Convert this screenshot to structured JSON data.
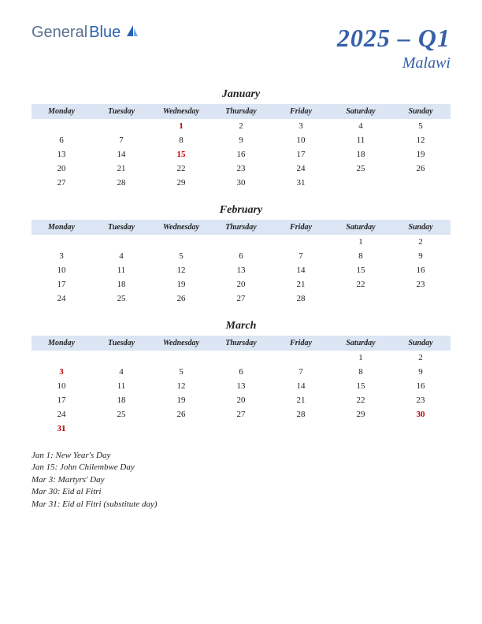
{
  "logo": {
    "general": "General",
    "blue": "Blue"
  },
  "title": {
    "main": "2025 – Q1",
    "sub": "Malawi"
  },
  "daynames": [
    "Monday",
    "Tuesday",
    "Wednesday",
    "Thursday",
    "Friday",
    "Saturday",
    "Sunday"
  ],
  "months": [
    {
      "name": "January",
      "weeks": [
        [
          {
            "d": ""
          },
          {
            "d": ""
          },
          {
            "d": "1",
            "h": true
          },
          {
            "d": "2"
          },
          {
            "d": "3"
          },
          {
            "d": "4"
          },
          {
            "d": "5"
          }
        ],
        [
          {
            "d": "6"
          },
          {
            "d": "7"
          },
          {
            "d": "8"
          },
          {
            "d": "9"
          },
          {
            "d": "10"
          },
          {
            "d": "11"
          },
          {
            "d": "12"
          }
        ],
        [
          {
            "d": "13"
          },
          {
            "d": "14"
          },
          {
            "d": "15",
            "h": true
          },
          {
            "d": "16"
          },
          {
            "d": "17"
          },
          {
            "d": "18"
          },
          {
            "d": "19"
          }
        ],
        [
          {
            "d": "20"
          },
          {
            "d": "21"
          },
          {
            "d": "22"
          },
          {
            "d": "23"
          },
          {
            "d": "24"
          },
          {
            "d": "25"
          },
          {
            "d": "26"
          }
        ],
        [
          {
            "d": "27"
          },
          {
            "d": "28"
          },
          {
            "d": "29"
          },
          {
            "d": "30"
          },
          {
            "d": "31"
          },
          {
            "d": ""
          },
          {
            "d": ""
          }
        ]
      ]
    },
    {
      "name": "February",
      "weeks": [
        [
          {
            "d": ""
          },
          {
            "d": ""
          },
          {
            "d": ""
          },
          {
            "d": ""
          },
          {
            "d": ""
          },
          {
            "d": "1"
          },
          {
            "d": "2"
          }
        ],
        [
          {
            "d": "3"
          },
          {
            "d": "4"
          },
          {
            "d": "5"
          },
          {
            "d": "6"
          },
          {
            "d": "7"
          },
          {
            "d": "8"
          },
          {
            "d": "9"
          }
        ],
        [
          {
            "d": "10"
          },
          {
            "d": "11"
          },
          {
            "d": "12"
          },
          {
            "d": "13"
          },
          {
            "d": "14"
          },
          {
            "d": "15"
          },
          {
            "d": "16"
          }
        ],
        [
          {
            "d": "17"
          },
          {
            "d": "18"
          },
          {
            "d": "19"
          },
          {
            "d": "20"
          },
          {
            "d": "21"
          },
          {
            "d": "22"
          },
          {
            "d": "23"
          }
        ],
        [
          {
            "d": "24"
          },
          {
            "d": "25"
          },
          {
            "d": "26"
          },
          {
            "d": "27"
          },
          {
            "d": "28"
          },
          {
            "d": ""
          },
          {
            "d": ""
          }
        ]
      ]
    },
    {
      "name": "March",
      "weeks": [
        [
          {
            "d": ""
          },
          {
            "d": ""
          },
          {
            "d": ""
          },
          {
            "d": ""
          },
          {
            "d": ""
          },
          {
            "d": "1"
          },
          {
            "d": "2"
          }
        ],
        [
          {
            "d": "3",
            "h": true
          },
          {
            "d": "4"
          },
          {
            "d": "5"
          },
          {
            "d": "6"
          },
          {
            "d": "7"
          },
          {
            "d": "8"
          },
          {
            "d": "9"
          }
        ],
        [
          {
            "d": "10"
          },
          {
            "d": "11"
          },
          {
            "d": "12"
          },
          {
            "d": "13"
          },
          {
            "d": "14"
          },
          {
            "d": "15"
          },
          {
            "d": "16"
          }
        ],
        [
          {
            "d": "17"
          },
          {
            "d": "18"
          },
          {
            "d": "19"
          },
          {
            "d": "20"
          },
          {
            "d": "21"
          },
          {
            "d": "22"
          },
          {
            "d": "23"
          }
        ],
        [
          {
            "d": "24"
          },
          {
            "d": "25"
          },
          {
            "d": "26"
          },
          {
            "d": "27"
          },
          {
            "d": "28"
          },
          {
            "d": "29"
          },
          {
            "d": "30",
            "h": true
          }
        ],
        [
          {
            "d": "31",
            "h": true
          },
          {
            "d": ""
          },
          {
            "d": ""
          },
          {
            "d": ""
          },
          {
            "d": ""
          },
          {
            "d": ""
          },
          {
            "d": ""
          }
        ]
      ]
    }
  ],
  "holidays": [
    "Jan 1: New Year's Day",
    "Jan 15: John Chilembwe Day",
    "Mar 3: Martyrs' Day",
    "Mar 30: Eid al Fitri",
    "Mar 31: Eid al Fitri (substitute day)"
  ],
  "colors": {
    "header_bg": "#dbe5f4",
    "title_color": "#3760a8",
    "holiday_color": "#c00000"
  }
}
